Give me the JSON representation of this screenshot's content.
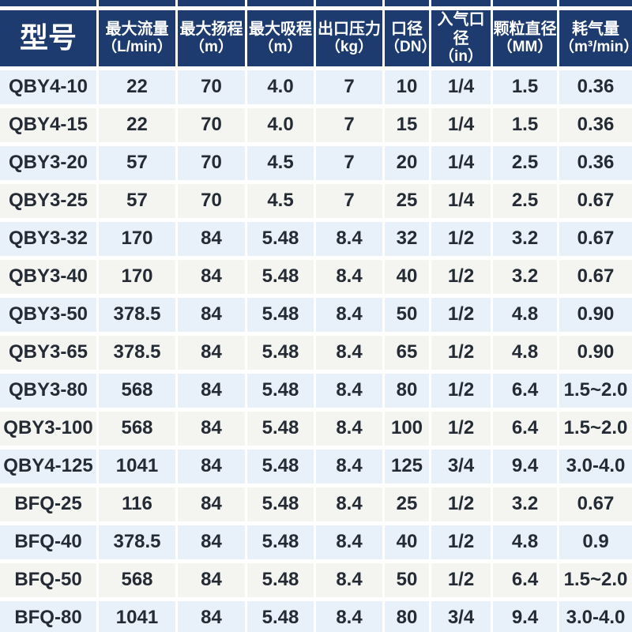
{
  "colors": {
    "header_navy": "#1d3b6e",
    "row_blue": "#e8f0fa",
    "row_gray": "#f4f4f1",
    "body_text": "#252b34",
    "header_text": "#ffffff",
    "gutter_white": "#ffffff"
  },
  "table": {
    "columns": [
      {
        "title": "型号",
        "unit": ""
      },
      {
        "title": "最大流量",
        "unit": "（L/min）"
      },
      {
        "title": "最大扬程",
        "unit": "（m）"
      },
      {
        "title": "最大吸程",
        "unit": "（m）"
      },
      {
        "title": "出口压力",
        "unit": "（kg）"
      },
      {
        "title": "口径",
        "unit": "（DN）"
      },
      {
        "title": "入气口径",
        "unit": "（in）"
      },
      {
        "title": "颗粒直径",
        "unit": "（MM）"
      },
      {
        "title": "耗气量",
        "unit": "（m³/min）"
      }
    ],
    "rows": [
      [
        "QBY4-10",
        "22",
        "70",
        "4.0",
        "7",
        "10",
        "1/4",
        "1.5",
        "0.36"
      ],
      [
        "QBY4-15",
        "22",
        "70",
        "4.0",
        "7",
        "15",
        "1/4",
        "1.5",
        "0.36"
      ],
      [
        "QBY3-20",
        "57",
        "70",
        "4.5",
        "7",
        "20",
        "1/4",
        "2.5",
        "0.36"
      ],
      [
        "QBY3-25",
        "57",
        "70",
        "4.5",
        "7",
        "25",
        "1/4",
        "2.5",
        "0.67"
      ],
      [
        "QBY3-32",
        "170",
        "84",
        "5.48",
        "8.4",
        "32",
        "1/2",
        "3.2",
        "0.67"
      ],
      [
        "QBY3-40",
        "170",
        "84",
        "5.48",
        "8.4",
        "40",
        "1/2",
        "3.2",
        "0.67"
      ],
      [
        "QBY3-50",
        "378.5",
        "84",
        "5.48",
        "8.4",
        "50",
        "1/2",
        "4.8",
        "0.90"
      ],
      [
        "QBY3-65",
        "378.5",
        "84",
        "5.48",
        "8.4",
        "65",
        "1/2",
        "4.8",
        "0.90"
      ],
      [
        "QBY3-80",
        "568",
        "84",
        "5.48",
        "8.4",
        "80",
        "1/2",
        "6.4",
        "1.5~2.0"
      ],
      [
        "QBY3-100",
        "568",
        "84",
        "5.48",
        "8.4",
        "100",
        "1/2",
        "6.4",
        "1.5~2.0"
      ],
      [
        "QBY4-125",
        "1041",
        "84",
        "5.48",
        "8.4",
        "125",
        "3/4",
        "9.4",
        "3.0-4.0"
      ],
      [
        "BFQ-25",
        "116",
        "84",
        "5.48",
        "8.4",
        "25",
        "1/2",
        "3.2",
        "0.67"
      ],
      [
        "BFQ-40",
        "378.5",
        "84",
        "5.48",
        "8.4",
        "40",
        "1/2",
        "4.8",
        "0.9"
      ],
      [
        "BFQ-50",
        "568",
        "84",
        "5.48",
        "8.4",
        "50",
        "1/2",
        "6.4",
        "1.5~2.0"
      ],
      [
        "BFQ-80",
        "1041",
        "84",
        "5.48",
        "8.4",
        "80",
        "3/4",
        "9.4",
        "3.0-4.0"
      ]
    ]
  }
}
